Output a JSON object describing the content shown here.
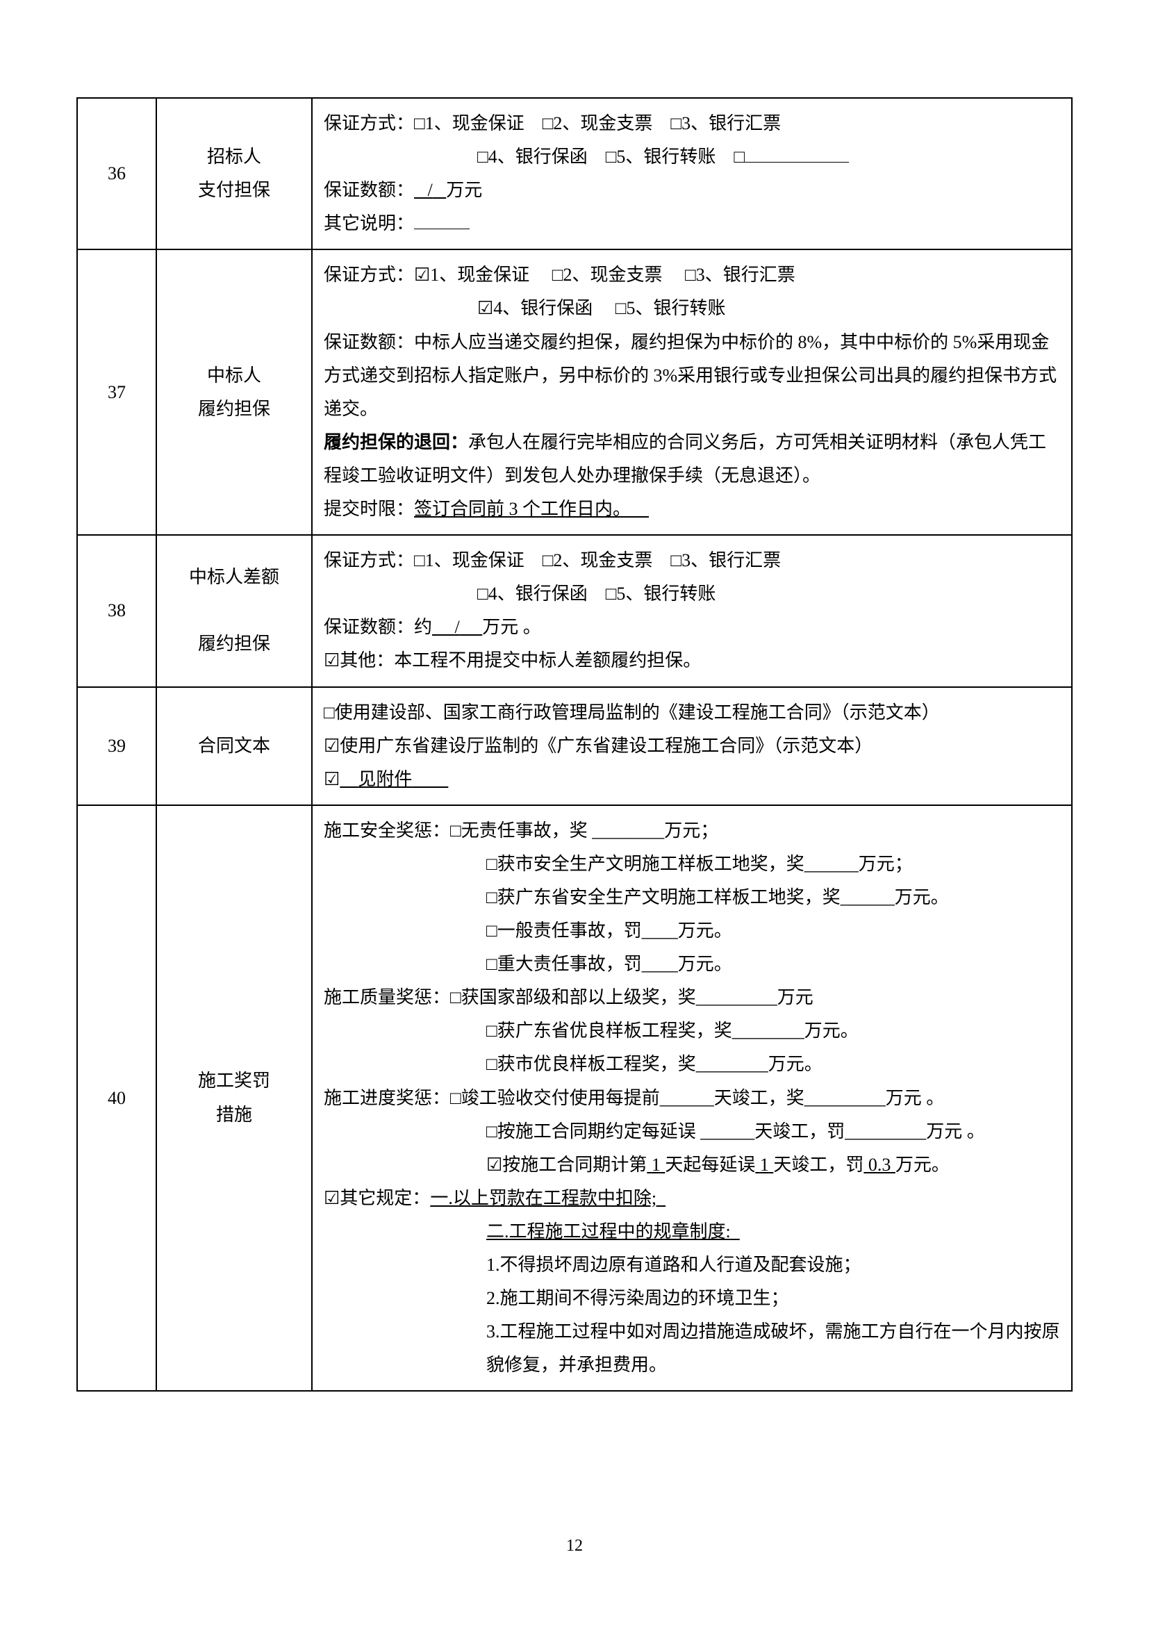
{
  "page_number": "12",
  "rows": [
    {
      "num": "36",
      "title_line1": "招标人",
      "title_line2": "支付担保",
      "c_l1": "保证方式：□1、现金保证　□2、现金支票　□3、银行汇票",
      "c_l2": "□4、银行保函　□5、银行转账　□",
      "c_l3a": "保证数额：",
      "c_l3b": "/",
      "c_l3c": "万元",
      "c_l4": "其它说明："
    },
    {
      "num": "37",
      "title_line1": "中标人",
      "title_line2": "履约担保",
      "c_l1": "保证方式：☑1、现金保证　 □2、现金支票　 □3、银行汇票",
      "c_l2": "☑4、银行保函　 □5、银行转账",
      "c_l3": "保证数额：中标人应当递交履约担保，履约担保为中标价的 8%，其中中标价的 5%采用现金方式递交到招标人指定账户，另中标价的 3%采用银行或专业担保公司出具的履约担保书方式递交。",
      "c_l4a": "履约担保的退回：",
      "c_l4b": "承包人在履行完毕相应的合同义务后，方可凭相关证明材料（承包人凭工程竣工验收证明文件）到发包人处办理撤保手续（无息退还）。",
      "c_l5a": "提交时限：",
      "c_l5b": "签订合同前 3 个工作日内。"
    },
    {
      "num": "38",
      "title_line1": "中标人差额",
      "title_line2": "履约担保",
      "c_l1": "保证方式：□1、现金保证　□2、现金支票　□3、银行汇票",
      "c_l2": "□4、银行保函　□5、银行转账",
      "c_l3a": "保证数额：约",
      "c_l3b": "/",
      "c_l3c": "万元 。",
      "c_l4": "☑其他：本工程不用提交中标人差额履约担保。"
    },
    {
      "num": "39",
      "title": "合同文本",
      "c_l1": "□使用建设部、国家工商行政管理局监制的《建设工程施工合同》（示范文本）",
      "c_l2": "☑使用广东省建设厅监制的《广东省建设工程施工合同》（示范文本）",
      "c_l3a": "☑",
      "c_l3b": "见附件"
    },
    {
      "num": "40",
      "title_line1": "施工奖罚",
      "title_line2": "措施",
      "c_l1": "施工安全奖惩：□无责任事故，奖 ________万元；",
      "c_l2": "□获市安全生产文明施工样板工地奖，奖______万元；",
      "c_l3": "□获广东省安全生产文明施工样板工地奖，奖______万元。",
      "c_l4": "□一般责任事故，罚____万元。",
      "c_l5": "□重大责任事故，罚____万元。",
      "c_l6": "施工质量奖惩：□获国家部级和部以上级奖，奖_________万元",
      "c_l7": "□获广东省优良样板工程奖，奖________万元。",
      "c_l8": "□获市优良样板工程奖，奖________万元。",
      "c_l9": "施工进度奖惩：□竣工验收交付使用每提前______天竣工，奖_________万元 。",
      "c_l10": "□按施工合同期约定每延误 ______天竣工，罚_________万元 。",
      "c_l11a": "☑按施工合同期计第",
      "c_l11b": "1",
      "c_l11c": "天起每延误",
      "c_l11d": "1",
      "c_l11e": "天竣工，罚",
      "c_l11f": "0.3",
      "c_l11g": "万元。",
      "c_l12a": "☑其它规定：",
      "c_l12b": "一.以上罚款在工程款中扣除;",
      "c_l13": "二.工程施工过程中的规章制度:",
      "c_l14": "1.不得损坏周边原有道路和人行道及配套设施；",
      "c_l15": "2.施工期间不得污染周边的环境卫生；",
      "c_l16": "3.工程施工过程中如对周边措施造成破坏，需施工方自行在一个月内按原貌修复，并承担费用。"
    }
  ]
}
